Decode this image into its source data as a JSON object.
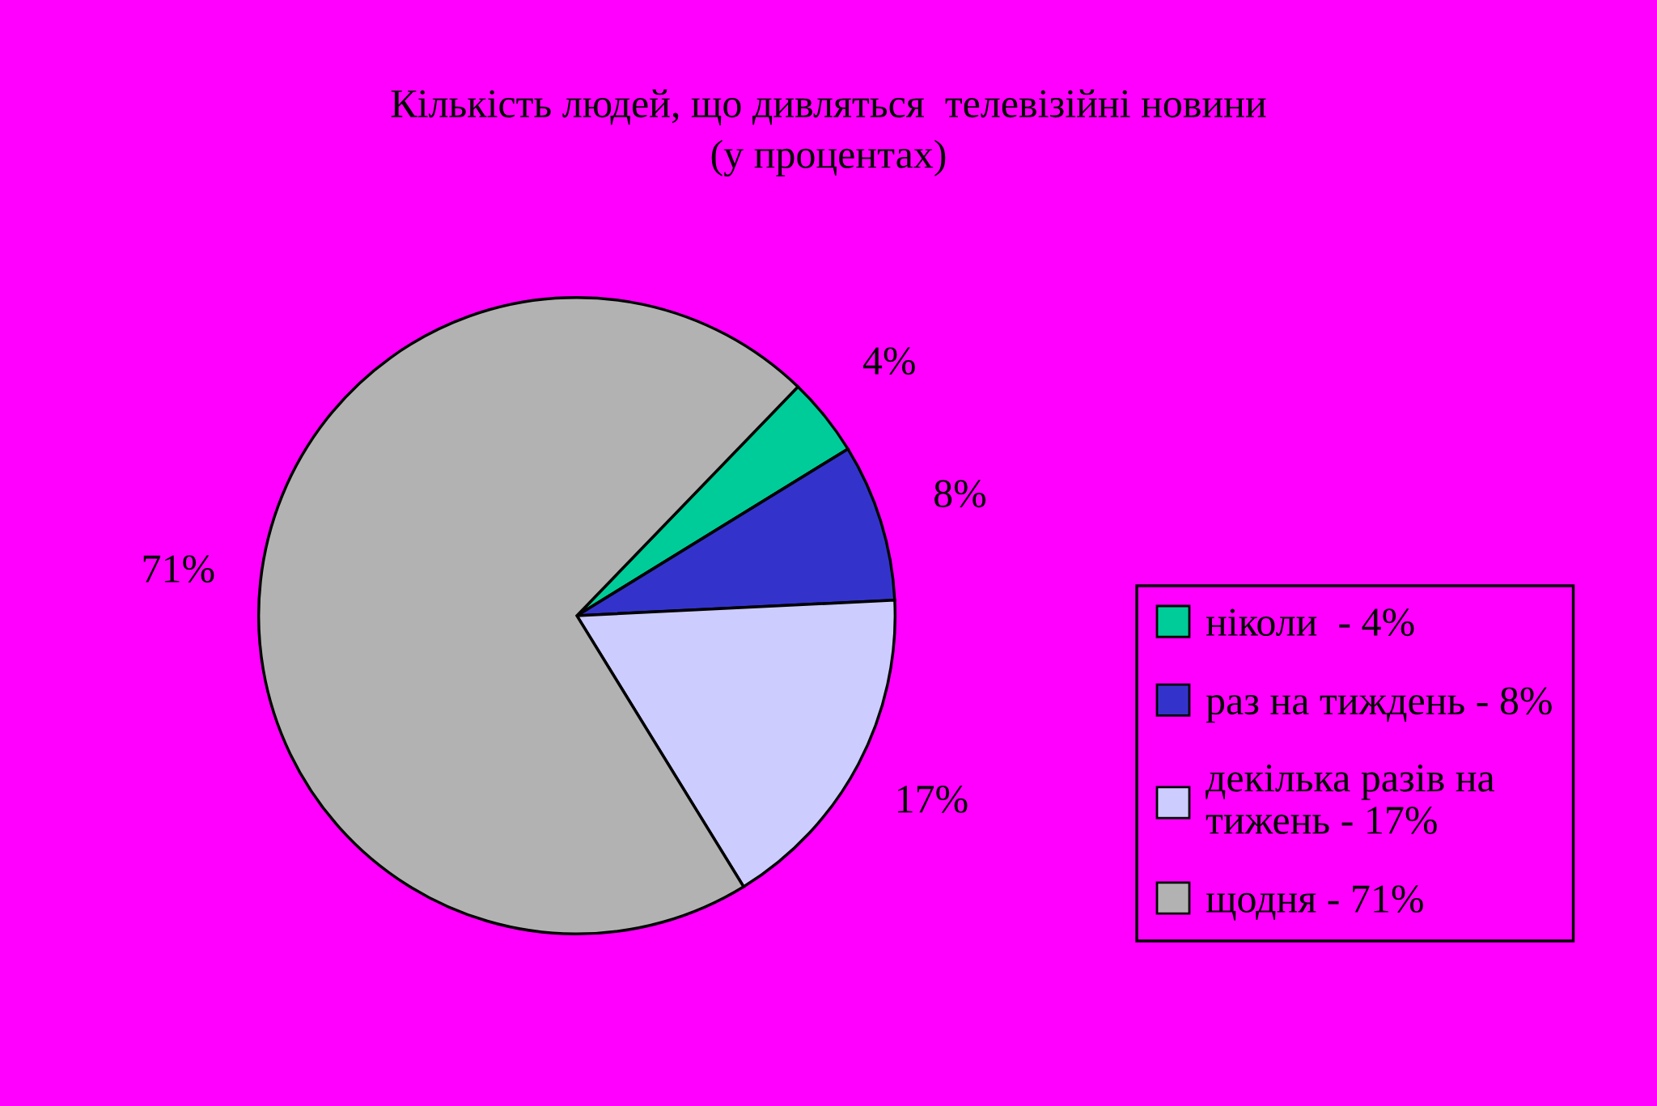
{
  "chart_data": {
    "type": "pie",
    "title": "Кількість людей, що дивляться  телевізійні новини\n(у процентах)",
    "categories": [
      "ніколи  - 4%",
      "раз на тиждень - 8%",
      "декілька разів на\nтижень - 17%",
      "щодня - 71%"
    ],
    "values": [
      4,
      8,
      17,
      71
    ],
    "colors": [
      "#00cc99",
      "#3333cc",
      "#ccccff",
      "#b2b2b2"
    ],
    "value_labels": [
      "4%",
      "8%",
      "17%",
      "71%"
    ],
    "legend": "right"
  }
}
